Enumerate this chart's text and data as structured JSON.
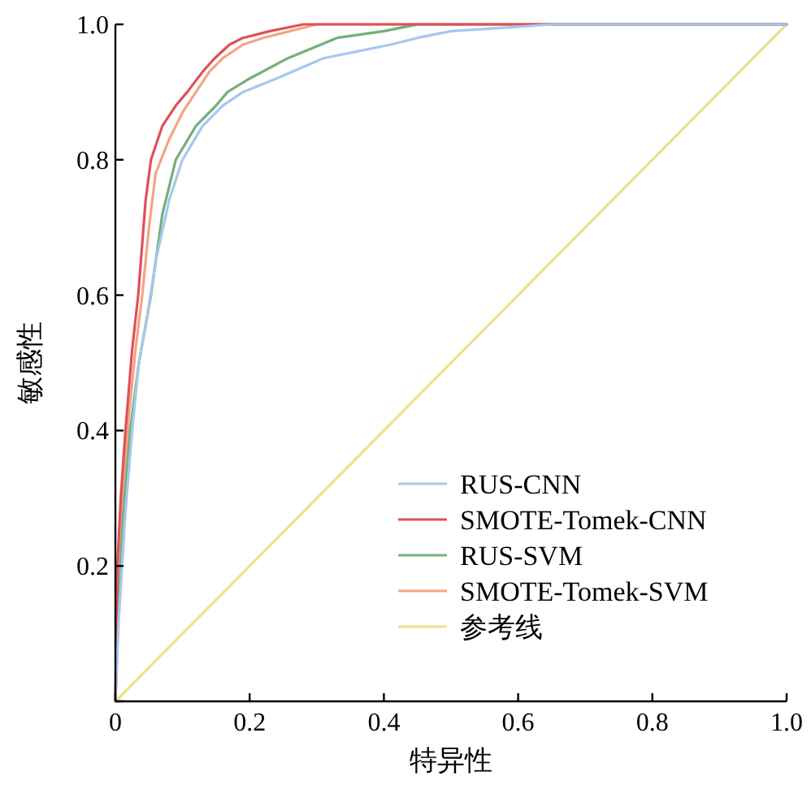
{
  "chart_data": {
    "type": "line",
    "xlabel": "特异性",
    "ylabel": "敏感性",
    "xlim": [
      0,
      1
    ],
    "ylim": [
      0,
      1
    ],
    "xticks": [
      0,
      0.2,
      0.4,
      0.6,
      0.8,
      {
        "value": 1,
        "label": "1.0"
      }
    ],
    "yticks": [
      {
        "value": 0,
        "label": null
      },
      0.2,
      0.4,
      0.6,
      0.8,
      {
        "value": 1,
        "label": "1.0"
      }
    ],
    "legend": "bottom right",
    "grid": false,
    "marker": "none",
    "line_style": "solid",
    "series": [
      {
        "name": "RUS-CNN",
        "color": "#a6c8ee",
        "x": [
          0,
          0.005,
          0.015,
          0.025,
          0.035,
          0.046,
          0.06,
          0.08,
          0.1,
          0.13,
          0.16,
          0.19,
          0.24,
          0.31,
          0.36,
          0.41,
          0.45,
          0.5,
          0.58,
          0.65,
          0.8,
          1
        ],
        "values": [
          0,
          0.12,
          0.28,
          0.4,
          0.5,
          0.56,
          0.65,
          0.74,
          0.8,
          0.85,
          0.88,
          0.9,
          0.92,
          0.95,
          0.96,
          0.97,
          0.98,
          0.99,
          0.995,
          1,
          1,
          1
        ]
      },
      {
        "name": "SMOTE-Tomek-CNN",
        "color": "#e0505a",
        "x": [
          0,
          0.003,
          0.008,
          0.015,
          0.025,
          0.034,
          0.045,
          0.053,
          0.07,
          0.09,
          0.107,
          0.13,
          0.148,
          0.17,
          0.19,
          0.23,
          0.28,
          0.4,
          0.6,
          0.8,
          1
        ],
        "values": [
          0,
          0.2,
          0.3,
          0.4,
          0.52,
          0.6,
          0.74,
          0.8,
          0.85,
          0.88,
          0.9,
          0.93,
          0.95,
          0.97,
          0.98,
          0.99,
          1,
          1,
          1,
          1,
          1
        ]
      },
      {
        "name": "RUS-SVM",
        "color": "#74b07a",
        "x": [
          0,
          0.005,
          0.012,
          0.022,
          0.035,
          0.053,
          0.07,
          0.09,
          0.12,
          0.15,
          0.167,
          0.2,
          0.257,
          0.33,
          0.4,
          0.45,
          0.6,
          1
        ],
        "values": [
          0,
          0.15,
          0.28,
          0.4,
          0.5,
          0.6,
          0.72,
          0.8,
          0.85,
          0.88,
          0.9,
          0.92,
          0.95,
          0.98,
          0.99,
          1,
          1,
          1
        ]
      },
      {
        "name": "SMOTE-Tomek-SVM",
        "color": "#f4a582",
        "x": [
          0,
          0.005,
          0.012,
          0.02,
          0.03,
          0.04,
          0.05,
          0.06,
          0.08,
          0.1,
          0.12,
          0.14,
          0.16,
          0.19,
          0.22,
          0.26,
          0.3,
          0.4,
          0.6,
          1
        ],
        "values": [
          0,
          0.2,
          0.32,
          0.42,
          0.52,
          0.6,
          0.7,
          0.78,
          0.83,
          0.87,
          0.9,
          0.93,
          0.95,
          0.97,
          0.98,
          0.99,
          1,
          1,
          1,
          1
        ]
      },
      {
        "name": "参考线",
        "color": "#eee08a",
        "x": [
          0,
          1
        ],
        "values": [
          0,
          1
        ]
      }
    ]
  }
}
